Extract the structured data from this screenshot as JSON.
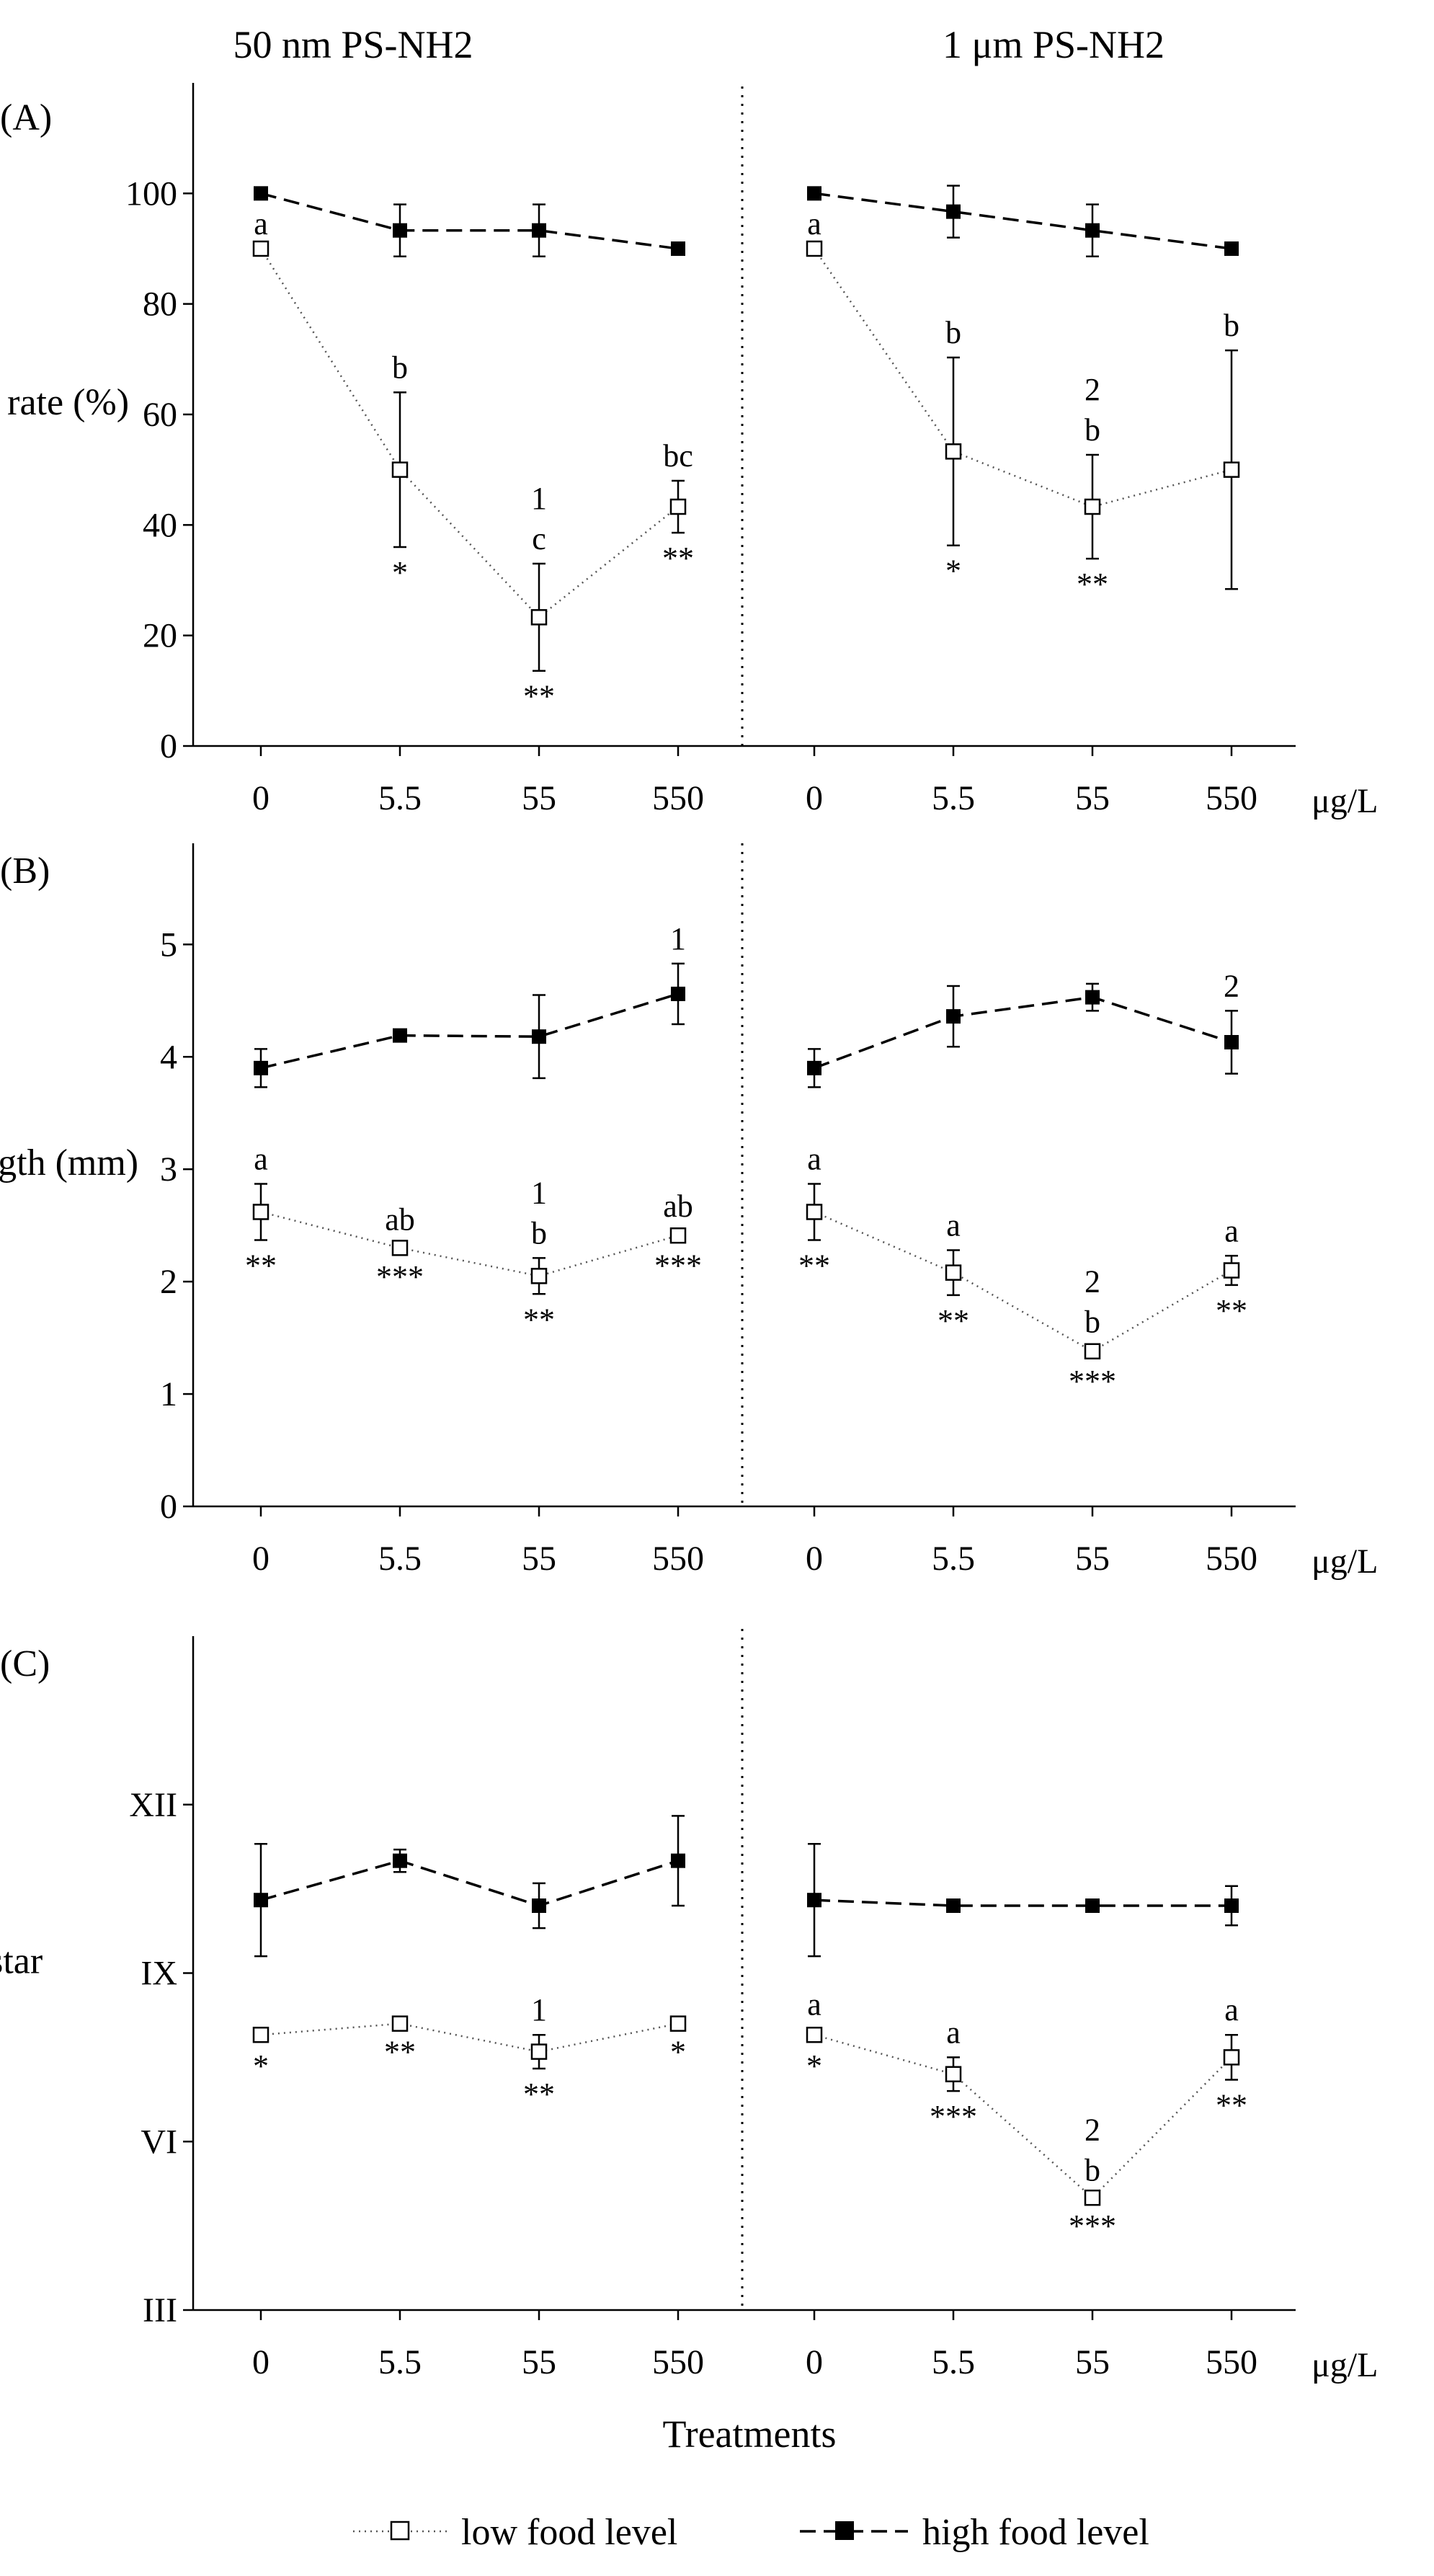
{
  "figure": {
    "group_headers": [
      "50 nm PS-NH2",
      "1 μm PS-NH2"
    ],
    "unit_label": "μg/L",
    "xlabel": "Treatments",
    "legend": [
      {
        "label": "low food level",
        "style": "dotted",
        "marker": "open-square"
      },
      {
        "label": "high food level",
        "style": "dashed",
        "marker": "filled-square"
      }
    ]
  },
  "chart_data": [
    {
      "type": "line",
      "panel_label": "(A)",
      "ylabel": "Survival rate (%)",
      "ylim": [
        0,
        120
      ],
      "yticks": [
        0,
        20,
        40,
        60,
        80,
        100
      ],
      "ytick_labels": [
        "0",
        "20",
        "40",
        "60",
        "80",
        "100"
      ],
      "categories": [
        "0",
        "5.5",
        "55",
        "550"
      ],
      "groups": [
        "50 nm PS-NH2",
        "1 μm PS-NH2"
      ],
      "series": [
        {
          "name": "low food level",
          "group": 0,
          "values": [
            90,
            50,
            23.3,
            43.3
          ],
          "errors": [
            0,
            14,
            9.7,
            4.7
          ]
        },
        {
          "name": "low food level",
          "group": 1,
          "values": [
            90,
            53.3,
            43.3,
            50
          ],
          "errors": [
            0,
            17,
            9.4,
            21.6
          ]
        },
        {
          "name": "high food level",
          "group": 0,
          "values": [
            100,
            93.3,
            93.3,
            90
          ],
          "errors": [
            0,
            4.7,
            4.7,
            0
          ]
        },
        {
          "name": "high food level",
          "group": 1,
          "values": [
            100,
            96.7,
            93.3,
            90
          ],
          "errors": [
            0,
            4.7,
            4.7,
            0
          ]
        }
      ],
      "annotations": [
        {
          "group": 0,
          "index": 0,
          "value": 90,
          "above": [
            "a"
          ],
          "below": []
        },
        {
          "group": 0,
          "index": 1,
          "value": 50,
          "above": [
            "b"
          ],
          "below": [
            "*"
          ]
        },
        {
          "group": 0,
          "index": 2,
          "value": 23.3,
          "above": [
            "1",
            "c"
          ],
          "below": [
            "**"
          ]
        },
        {
          "group": 0,
          "index": 3,
          "value": 43.3,
          "above": [
            "bc"
          ],
          "below": [
            "**"
          ]
        },
        {
          "group": 1,
          "index": 0,
          "value": 90,
          "above": [
            "a"
          ],
          "below": []
        },
        {
          "group": 1,
          "index": 1,
          "value": 53.3,
          "above": [
            "b"
          ],
          "below": [
            "*"
          ]
        },
        {
          "group": 1,
          "index": 2,
          "value": 43.3,
          "above": [
            "2",
            "b"
          ],
          "below": [
            "**"
          ]
        },
        {
          "group": 1,
          "index": 3,
          "value": 50,
          "above": [
            "b"
          ],
          "below": []
        }
      ]
    },
    {
      "type": "line",
      "panel_label": "(B)",
      "ylabel": "Body length (mm)",
      "ylim": [
        0,
        5.9
      ],
      "yticks": [
        0,
        1,
        2,
        3,
        4,
        5
      ],
      "ytick_labels": [
        "0",
        "1",
        "2",
        "3",
        "4",
        "5"
      ],
      "categories": [
        "0",
        "5.5",
        "55",
        "550"
      ],
      "groups": [
        "50 nm PS-NH2",
        "1 μm PS-NH2"
      ],
      "series": [
        {
          "name": "low food level",
          "group": 0,
          "values": [
            2.62,
            2.3,
            2.05,
            2.41
          ],
          "errors": [
            0.25,
            0.03,
            0.16,
            0.04
          ]
        },
        {
          "name": "low food level",
          "group": 1,
          "values": [
            2.62,
            2.08,
            1.38,
            2.1
          ],
          "errors": [
            0.25,
            0.2,
            0.04,
            0.13
          ]
        },
        {
          "name": "high food level",
          "group": 0,
          "values": [
            3.9,
            4.19,
            4.18,
            4.56
          ],
          "errors": [
            0.17,
            0.05,
            0.37,
            0.27
          ]
        },
        {
          "name": "high food level",
          "group": 1,
          "values": [
            3.9,
            4.36,
            4.53,
            4.13
          ],
          "errors": [
            0.17,
            0.27,
            0.12,
            0.28
          ]
        }
      ],
      "annotations": [
        {
          "group": 0,
          "index": 0,
          "value": 2.62,
          "above": [
            "a"
          ],
          "below": [
            "**"
          ]
        },
        {
          "group": 0,
          "index": 1,
          "value": 2.3,
          "above": [
            "ab"
          ],
          "below": [
            "***"
          ]
        },
        {
          "group": 0,
          "index": 2,
          "value": 2.05,
          "above": [
            "1",
            "b"
          ],
          "below": [
            "**"
          ]
        },
        {
          "group": 0,
          "index": 3,
          "value": 2.41,
          "above": [
            "ab"
          ],
          "below": [
            "***"
          ]
        },
        {
          "group": 0,
          "index": 3,
          "value": 4.56,
          "above": [
            "1"
          ],
          "below": []
        },
        {
          "group": 1,
          "index": 0,
          "value": 2.62,
          "above": [
            "a"
          ],
          "below": [
            "**"
          ]
        },
        {
          "group": 1,
          "index": 1,
          "value": 2.08,
          "above": [
            "a"
          ],
          "below": [
            "**"
          ]
        },
        {
          "group": 1,
          "index": 2,
          "value": 1.38,
          "above": [
            "2",
            "b"
          ],
          "below": [
            "***"
          ]
        },
        {
          "group": 1,
          "index": 3,
          "value": 2.1,
          "above": [
            "a"
          ],
          "below": [
            "**"
          ]
        },
        {
          "group": 1,
          "index": 3,
          "value": 4.13,
          "above": [
            "2"
          ],
          "below": []
        }
      ]
    },
    {
      "type": "line",
      "panel_label": "(C)",
      "ylabel": "Instar",
      "ylim": [
        3,
        15
      ],
      "yticks": [
        3,
        6,
        9,
        12
      ],
      "ytick_labels": [
        "III",
        "VI",
        "IX",
        "XII"
      ],
      "categories": [
        "0",
        "5.5",
        "55",
        "550"
      ],
      "groups": [
        "50 nm PS-NH2",
        "1 μm PS-NH2"
      ],
      "series": [
        {
          "name": "low food level",
          "group": 0,
          "values": [
            7.9,
            8.1,
            7.6,
            8.1
          ],
          "errors": [
            0.1,
            0.05,
            0.3,
            0.05
          ]
        },
        {
          "name": "low food level",
          "group": 1,
          "values": [
            7.9,
            7.2,
            5.0,
            7.5
          ],
          "errors": [
            0.1,
            0.3,
            0.05,
            0.4
          ]
        },
        {
          "name": "high food level",
          "group": 0,
          "values": [
            10.3,
            11.0,
            10.2,
            11.0
          ],
          "errors": [
            1.0,
            0.2,
            0.4,
            0.8
          ]
        },
        {
          "name": "high food level",
          "group": 1,
          "values": [
            10.3,
            10.2,
            10.2,
            10.2
          ],
          "errors": [
            1.0,
            0.05,
            0.05,
            0.35
          ]
        }
      ],
      "annotations": [
        {
          "group": 0,
          "index": 0,
          "value": 7.9,
          "above": [],
          "below": [
            "*"
          ]
        },
        {
          "group": 0,
          "index": 1,
          "value": 8.1,
          "above": [],
          "below": [
            "**"
          ]
        },
        {
          "group": 0,
          "index": 2,
          "value": 7.6,
          "above": [
            "1"
          ],
          "below": [
            "**"
          ]
        },
        {
          "group": 0,
          "index": 3,
          "value": 8.1,
          "above": [],
          "below": [
            "*"
          ]
        },
        {
          "group": 1,
          "index": 0,
          "value": 7.9,
          "above": [
            "a"
          ],
          "below": [
            "*"
          ]
        },
        {
          "group": 1,
          "index": 1,
          "value": 7.2,
          "above": [
            "a"
          ],
          "below": [
            "***"
          ]
        },
        {
          "group": 1,
          "index": 2,
          "value": 5.0,
          "above": [
            "2",
            "b"
          ],
          "below": [
            "***"
          ]
        },
        {
          "group": 1,
          "index": 3,
          "value": 7.5,
          "above": [
            "a"
          ],
          "below": [
            "**"
          ]
        }
      ]
    }
  ]
}
